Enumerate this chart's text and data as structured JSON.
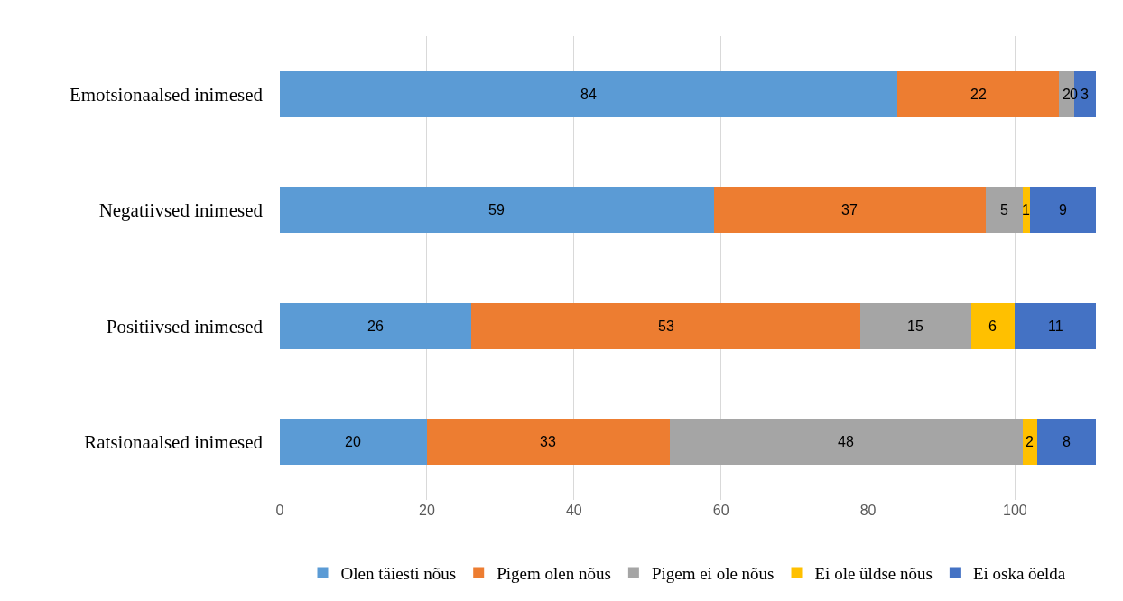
{
  "chart_data": {
    "type": "bar",
    "orientation": "horizontal",
    "stacked": true,
    "data_labels": true,
    "grid": "x",
    "legend": "bottom",
    "categories": [
      "Emotsionaalsed inimesed",
      "Negatiivsed inimesed",
      "Positiivsed inimesed",
      "Ratsionaalsed inimesed"
    ],
    "xlim": [
      0,
      111
    ],
    "xticks": [
      0,
      20,
      40,
      60,
      80,
      100
    ],
    "series": [
      {
        "name": "Olen täiesti nõus",
        "color": "#5b9bd5",
        "values": [
          84,
          59,
          26,
          20
        ]
      },
      {
        "name": "Pigem olen nõus",
        "color": "#ed7d31",
        "values": [
          22,
          37,
          53,
          33
        ]
      },
      {
        "name": "Pigem ei ole nõus",
        "color": "#a5a5a5",
        "values": [
          2,
          5,
          15,
          48
        ]
      },
      {
        "name": "Ei ole üldse nõus",
        "color": "#ffc000",
        "values": [
          0,
          1,
          6,
          2
        ]
      },
      {
        "name": "Ei oska öelda",
        "color": "#4472c4",
        "values": [
          3,
          9,
          11,
          8
        ]
      }
    ]
  }
}
